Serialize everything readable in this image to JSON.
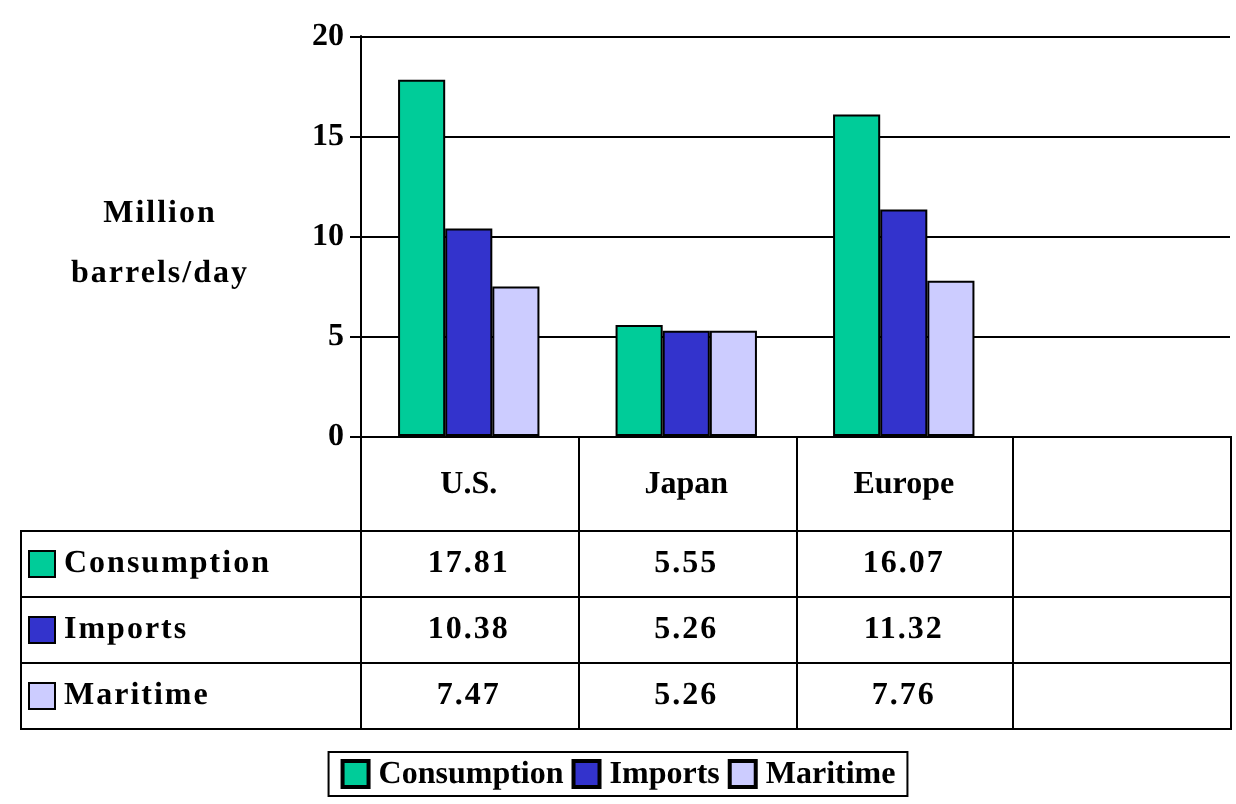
{
  "chart_data": {
    "type": "bar",
    "ylabel": "Million barrels/day",
    "categories": [
      "U.S.",
      "Japan",
      "Europe",
      null
    ],
    "series": [
      {
        "name": "Consumption",
        "color": "#00cc99",
        "values": [
          17.81,
          5.55,
          16.07,
          null
        ]
      },
      {
        "name": "Imports",
        "color": "#3333cc",
        "values": [
          10.38,
          5.26,
          11.32,
          null
        ]
      },
      {
        "name": "Maritime",
        "color": "#ccccff",
        "values": [
          7.47,
          5.26,
          7.76,
          null
        ]
      }
    ],
    "ylim": [
      0,
      20
    ],
    "yticks": [
      0,
      5,
      10,
      15,
      20
    ],
    "grid": "y",
    "legend": "bottom",
    "data_labels": true
  }
}
